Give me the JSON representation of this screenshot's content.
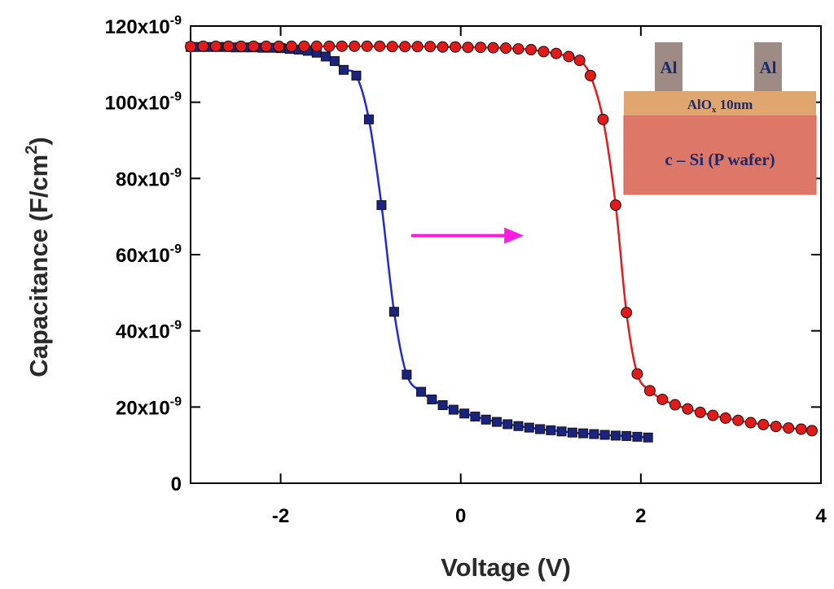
{
  "chart_data": {
    "type": "scatter",
    "title": "",
    "xlabel": "Voltage (V)",
    "ylabel": "Capacitance (F/cm2)",
    "xlim": [
      -3,
      4
    ],
    "ylim": [
      0,
      1.2e-07
    ],
    "x_ticks": [
      {
        "value": -2,
        "label": "-2"
      },
      {
        "value": 0,
        "label": "0"
      },
      {
        "value": 2,
        "label": "2"
      },
      {
        "value": 4,
        "label": "4"
      }
    ],
    "y_ticks": [
      {
        "value": 0,
        "label": "0"
      },
      {
        "value": 2e-08,
        "label": "20x10",
        "exp": "-9"
      },
      {
        "value": 4e-08,
        "label": "40x10",
        "exp": "-9"
      },
      {
        "value": 6e-08,
        "label": "60x10",
        "exp": "-9"
      },
      {
        "value": 8e-08,
        "label": "80x10",
        "exp": "-9"
      },
      {
        "value": 1e-07,
        "label": "100x10",
        "exp": "-9"
      },
      {
        "value": 1.2e-07,
        "label": "120x10",
        "exp": "-9"
      }
    ],
    "grid": false,
    "series": [
      {
        "color": "#1f2bd6",
        "marker": "square",
        "marker_fill": "#1a237e",
        "x": [
          -3.0,
          -2.9,
          -2.8,
          -2.7,
          -2.6,
          -2.5,
          -2.4,
          -2.3,
          -2.2,
          -2.1,
          -2.0,
          -1.9,
          -1.8,
          -1.7,
          -1.6,
          -1.5,
          -1.4,
          -1.3,
          -1.16,
          -1.02,
          -0.88,
          -0.74,
          -0.6,
          -0.44,
          -0.32,
          -0.2,
          -0.08,
          0.04,
          0.16,
          0.28,
          0.4,
          0.52,
          0.64,
          0.76,
          0.88,
          1.0,
          1.12,
          1.24,
          1.36,
          1.48,
          1.6,
          1.72,
          1.84,
          1.96,
          2.08
        ],
        "y": [
          1.145e-07,
          1.145e-07,
          1.145e-07,
          1.145e-07,
          1.145e-07,
          1.144e-07,
          1.144e-07,
          1.144e-07,
          1.143e-07,
          1.143e-07,
          1.142e-07,
          1.14e-07,
          1.138e-07,
          1.135e-07,
          1.13e-07,
          1.12e-07,
          1.108e-07,
          1.085e-07,
          1.07e-07,
          9.55e-08,
          7.3e-08,
          4.5e-08,
          2.85e-08,
          2.4e-08,
          2.2e-08,
          2.05e-08,
          1.93e-08,
          1.83e-08,
          1.75e-08,
          1.67e-08,
          1.61e-08,
          1.55e-08,
          1.5e-08,
          1.46e-08,
          1.42e-08,
          1.39e-08,
          1.36e-08,
          1.33e-08,
          1.31e-08,
          1.29e-08,
          1.27e-08,
          1.25e-08,
          1.24e-08,
          1.22e-08,
          1.2e-08
        ]
      },
      {
        "color": "#e8191e",
        "marker": "circle",
        "marker_fill": "#e21a1a",
        "x": [
          -3.0,
          -2.86,
          -2.72,
          -2.58,
          -2.44,
          -2.3,
          -2.16,
          -2.02,
          -1.88,
          -1.74,
          -1.6,
          -1.46,
          -1.32,
          -1.18,
          -1.04,
          -0.9,
          -0.76,
          -0.62,
          -0.48,
          -0.34,
          -0.2,
          -0.06,
          0.08,
          0.22,
          0.36,
          0.5,
          0.64,
          0.78,
          0.92,
          1.06,
          1.2,
          1.32,
          1.44,
          1.58,
          1.72,
          1.84,
          1.96,
          2.1,
          2.24,
          2.38,
          2.52,
          2.66,
          2.8,
          2.94,
          3.08,
          3.22,
          3.36,
          3.5,
          3.64,
          3.78,
          3.9
        ],
        "y": [
          1.146e-07,
          1.147e-07,
          1.147e-07,
          1.147e-07,
          1.147e-07,
          1.147e-07,
          1.147e-07,
          1.147e-07,
          1.147e-07,
          1.147e-07,
          1.147e-07,
          1.147e-07,
          1.147e-07,
          1.147e-07,
          1.147e-07,
          1.147e-07,
          1.146e-07,
          1.146e-07,
          1.146e-07,
          1.146e-07,
          1.145e-07,
          1.145e-07,
          1.144e-07,
          1.144e-07,
          1.143e-07,
          1.142e-07,
          1.14e-07,
          1.138e-07,
          1.133e-07,
          1.128e-07,
          1.12e-07,
          1.11e-07,
          1.07e-07,
          9.55e-08,
          7.3e-08,
          4.48e-08,
          2.87e-08,
          2.43e-08,
          2.2e-08,
          2.06e-08,
          1.95e-08,
          1.86e-08,
          1.78e-08,
          1.71e-08,
          1.65e-08,
          1.59e-08,
          1.54e-08,
          1.49e-08,
          1.45e-08,
          1.42e-08,
          1.38e-08
        ]
      }
    ],
    "annotation_arrow": {
      "color": "#ff1adf",
      "x_start": -0.55,
      "x_end": 0.7,
      "y": 6.5e-08
    },
    "inset": {
      "electrode_label": "Al",
      "oxide_label": "AlO",
      "oxide_sub": "x",
      "oxide_suffix": " 10nm",
      "substrate_label": "c – Si (P wafer)",
      "colors": {
        "electrode": "#9e8b86",
        "oxide": "#e0a66f",
        "substrate": "#dd7767"
      }
    }
  }
}
